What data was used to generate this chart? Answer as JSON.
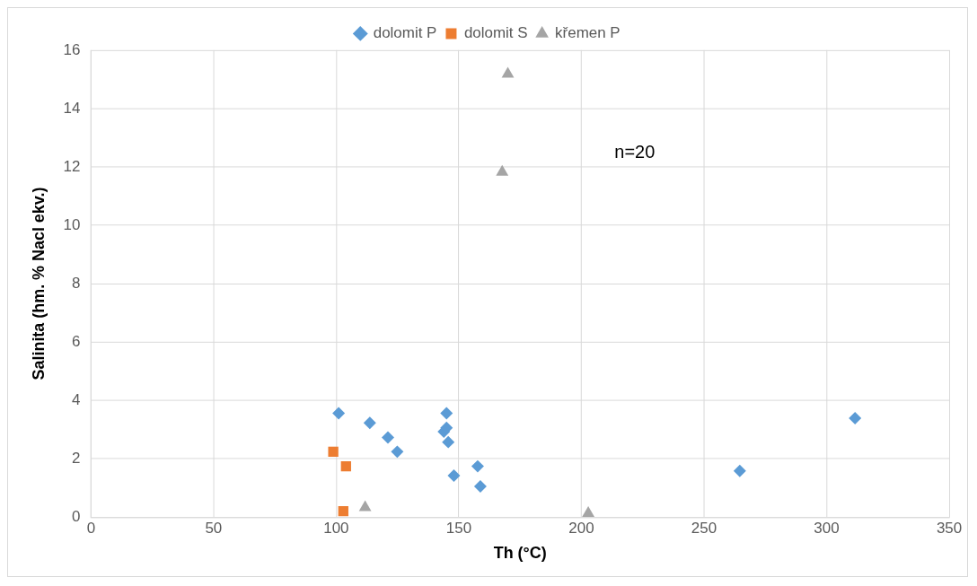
{
  "chart_data": {
    "type": "scatter",
    "xlabel": "Th (°C)",
    "ylabel": "Salinita (hm. % Nacl ekv.)",
    "xlim": [
      0,
      350
    ],
    "xticks": [
      0,
      50,
      100,
      150,
      200,
      250,
      300,
      350
    ],
    "ylim": [
      0,
      16
    ],
    "yticks": [
      0,
      2,
      4,
      6,
      8,
      10,
      12,
      14,
      16
    ],
    "grid": true,
    "legend": "top",
    "annotations": [
      "n=20"
    ],
    "series": [
      {
        "name": "dolomit P",
        "color": "#5b9bd5",
        "marker": "diamond",
        "x": [
          101,
          113.7,
          121.1,
          124.9,
          145,
          143.9,
          145,
          145.7,
          148,
          157.7,
          158.8,
          264.6,
          311.6
        ],
        "values": [
          3.56,
          3.23,
          2.73,
          2.24,
          3.56,
          2.93,
          3.06,
          2.57,
          1.42,
          1.74,
          1.05,
          1.58,
          3.39
        ]
      },
      {
        "name": "dolomit S",
        "color": "#ed7d31",
        "marker": "square",
        "x": [
          98.8,
          104,
          102.9
        ],
        "values": [
          2.24,
          1.74,
          0.2
        ]
      },
      {
        "name": "křemen P",
        "color": "#a5a5a5",
        "marker": "triangle",
        "x": [
          170,
          167.7,
          111.8,
          202.8
        ],
        "values": [
          15.18,
          11.82,
          0.33,
          0.13
        ]
      }
    ]
  }
}
